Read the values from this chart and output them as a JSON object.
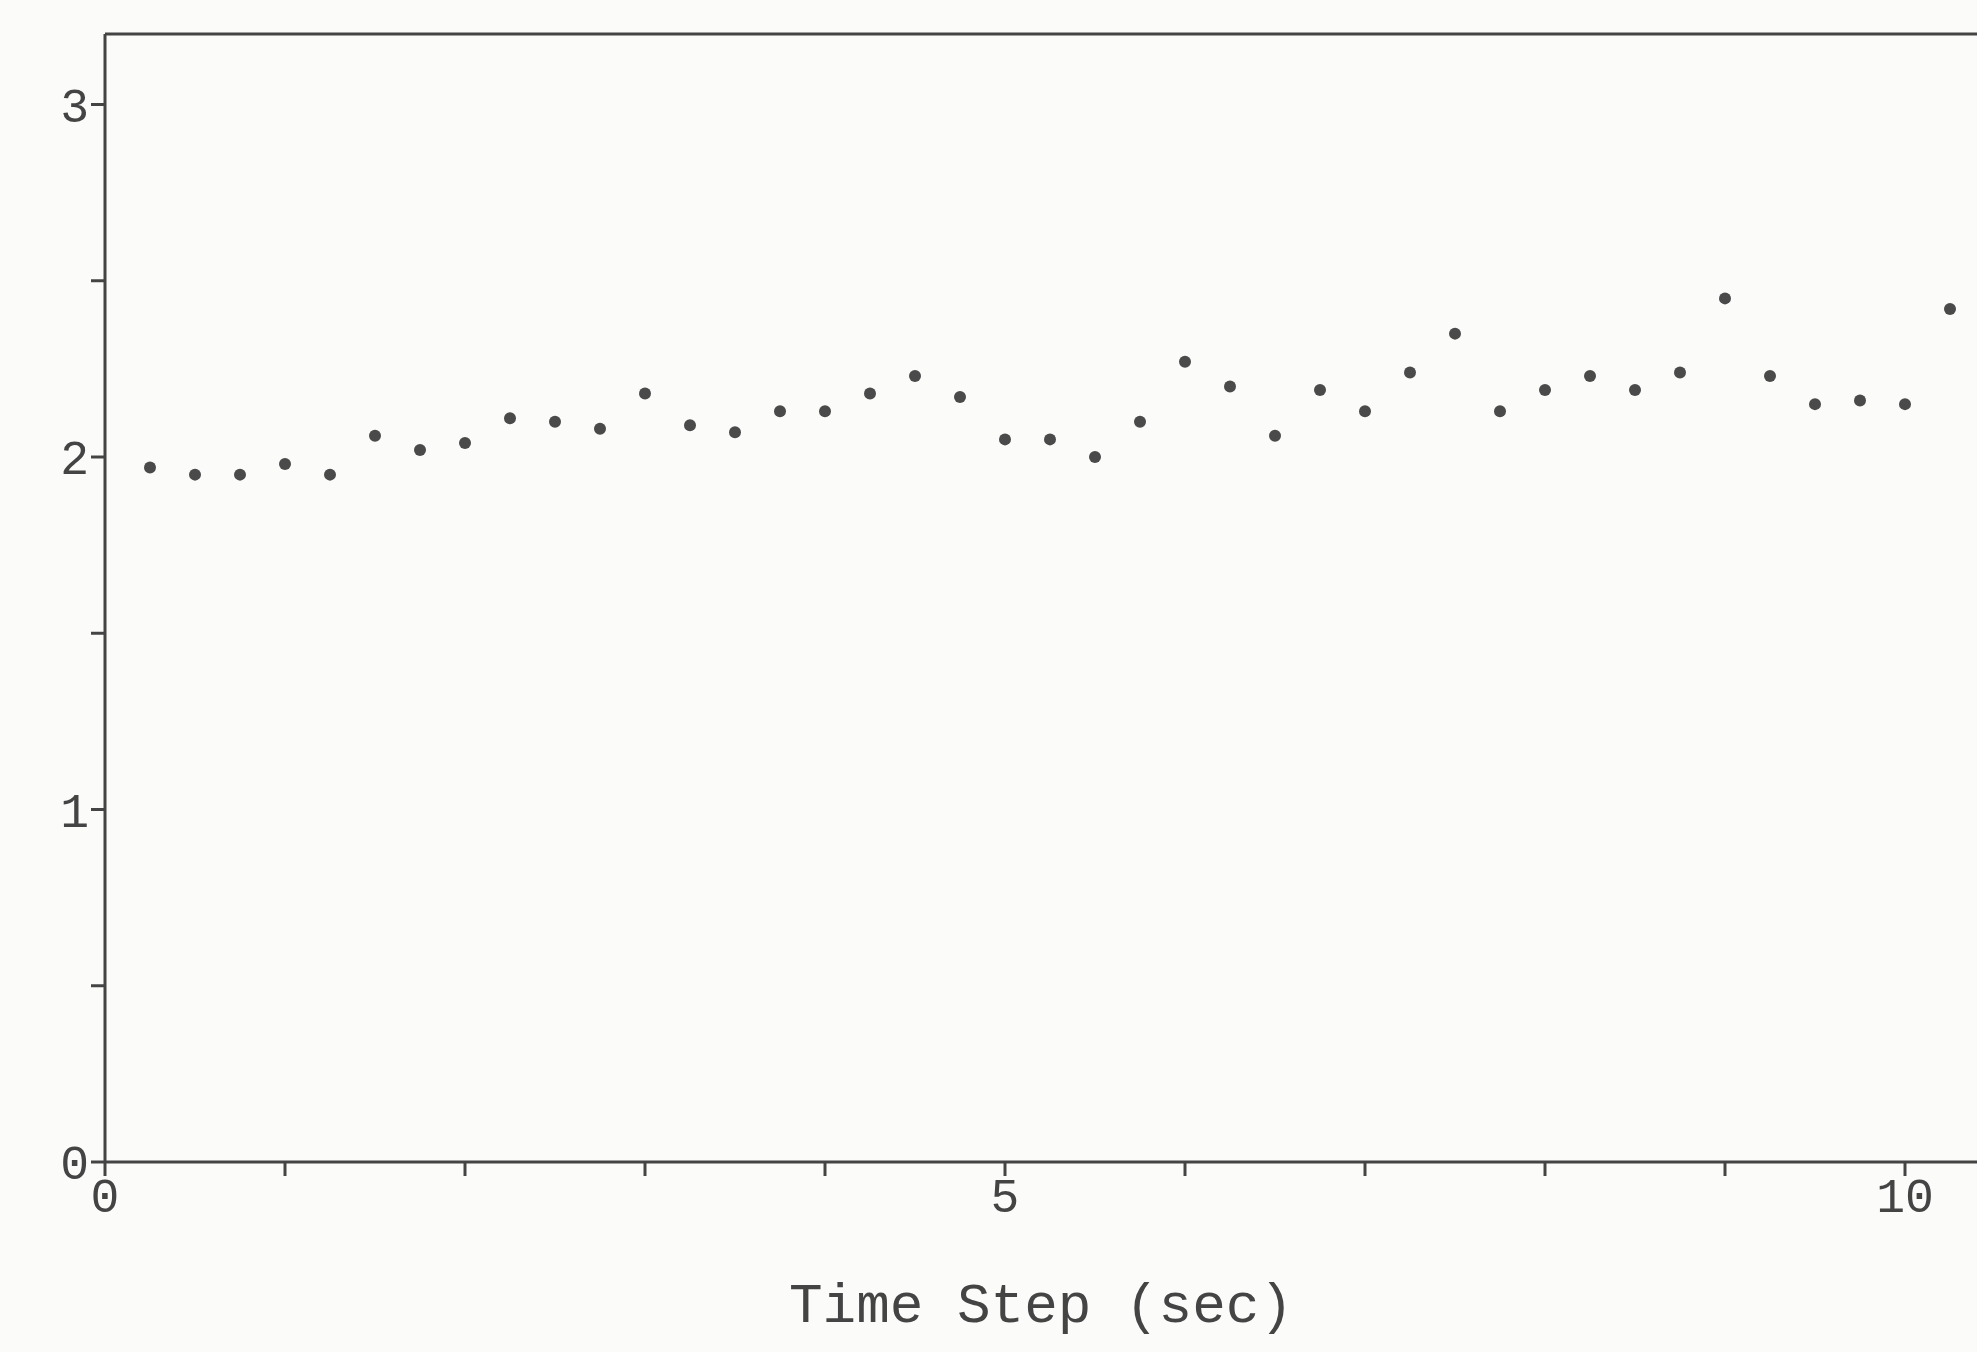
{
  "chart_data": {
    "type": "scatter",
    "xlabel": "Time Step (sec)",
    "x": [
      0.25,
      0.5,
      0.75,
      1,
      1.25,
      1.5,
      1.75,
      2,
      2.25,
      2.5,
      2.75,
      3,
      3.25,
      3.5,
      3.75,
      4,
      4.25,
      4.5,
      4.75,
      5,
      5.25,
      5.5,
      5.75,
      6,
      6.25,
      6.5,
      6.75,
      7,
      7.25,
      7.5,
      7.75,
      8,
      8.25,
      8.5,
      8.75,
      9,
      9.25,
      9.5,
      9.75,
      10,
      10.25
    ],
    "series": [
      {
        "color": "#4a4a4a",
        "values": [
          1.97,
          1.95,
          1.95,
          1.98,
          1.95,
          2.06,
          2.02,
          2.04,
          2.11,
          2.1,
          2.08,
          2.18,
          2.09,
          2.07,
          2.13,
          2.13,
          2.18,
          2.23,
          2.17,
          2.05,
          2.05,
          2.0,
          2.1,
          2.27,
          2.2,
          2.06,
          2.19,
          2.13,
          2.24,
          2.35,
          2.13,
          2.19,
          2.23,
          2.19,
          2.24,
          2.45,
          2.23,
          2.15,
          2.16,
          2.15,
          2.42
        ]
      }
    ],
    "xlim": [
      0,
      10.4
    ],
    "ylim": [
      0,
      3.2
    ],
    "xticks": [
      0,
      {
        "value": 1,
        "label": null
      },
      {
        "value": 2,
        "label": null
      },
      {
        "value": 3,
        "label": null
      },
      {
        "value": 4,
        "label": null
      },
      5,
      {
        "value": 6,
        "label": null
      },
      {
        "value": 7,
        "label": null
      },
      {
        "value": 8,
        "label": null
      },
      {
        "value": 9,
        "label": null
      },
      10
    ],
    "yticks": [
      0,
      {
        "value": 0.5,
        "label": null
      },
      1,
      {
        "value": 1.5,
        "label": null
      },
      2,
      {
        "value": 2.5,
        "label": null
      },
      3
    ],
    "marker": "circle",
    "grid": false,
    "legend": false
  }
}
